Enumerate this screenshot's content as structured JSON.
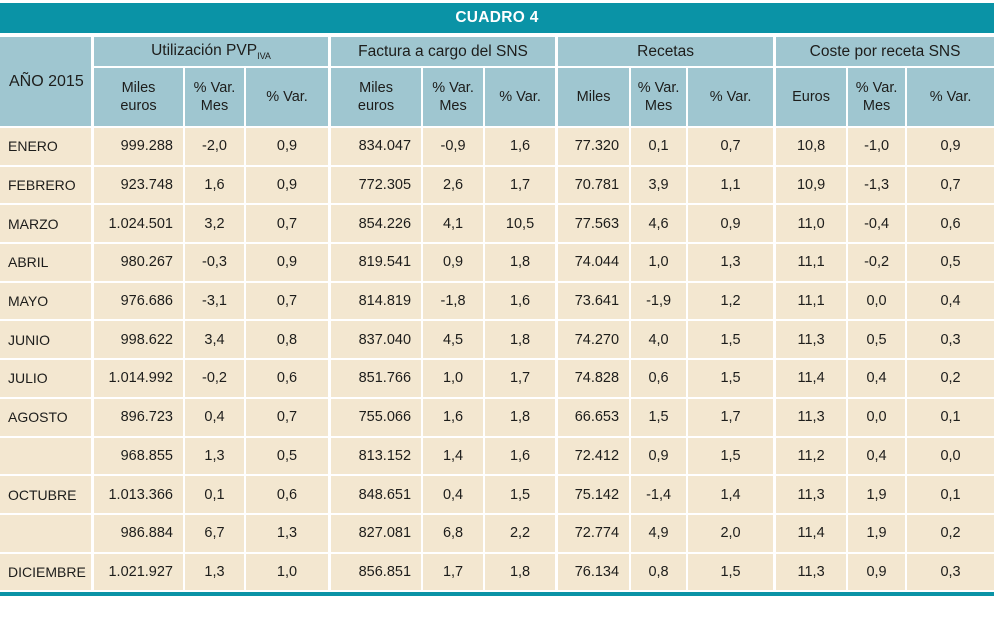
{
  "title": "CUADRO 4",
  "row_header": "AÑO 2015",
  "colors": {
    "accent_teal": "#0a93a6",
    "header_blue": "#9fc6d0",
    "row_cream": "#f3e7d0"
  },
  "groups": [
    {
      "label": "Utilización PVP",
      "label_sub": "IVA",
      "cols": [
        "Miles\neuros",
        "% Var.\nMes",
        "% Var."
      ]
    },
    {
      "label": "Factura a cargo del SNS",
      "cols": [
        "Miles\neuros",
        "% Var.\nMes",
        "% Var."
      ]
    },
    {
      "label": "Recetas",
      "cols": [
        "Miles",
        "% Var.\nMes",
        "% Var."
      ]
    },
    {
      "label": "Coste por receta SNS",
      "cols": [
        "Euros",
        "% Var.\nMes",
        "% Var."
      ]
    }
  ],
  "rows": [
    {
      "month": "ENERO",
      "values": [
        "999.288",
        "-2,0",
        "0,9",
        "834.047",
        "-0,9",
        "1,6",
        "77.320",
        "0,1",
        "0,7",
        "10,8",
        "-1,0",
        "0,9"
      ]
    },
    {
      "month": "FEBRERO",
      "values": [
        "923.748",
        "1,6",
        "0,9",
        "772.305",
        "2,6",
        "1,7",
        "70.781",
        "3,9",
        "1,1",
        "10,9",
        "-1,3",
        "0,7"
      ]
    },
    {
      "month": "MARZO",
      "values": [
        "1.024.501",
        "3,2",
        "0,7",
        "854.226",
        "4,1",
        "10,5",
        "77.563",
        "4,6",
        "0,9",
        "11,0",
        "-0,4",
        "0,6"
      ]
    },
    {
      "month": "ABRIL",
      "values": [
        "980.267",
        "-0,3",
        "0,9",
        "819.541",
        "0,9",
        "1,8",
        "74.044",
        "1,0",
        "1,3",
        "11,1",
        "-0,2",
        "0,5"
      ]
    },
    {
      "month": "MAYO",
      "values": [
        "976.686",
        "-3,1",
        "0,7",
        "814.819",
        "-1,8",
        "1,6",
        "73.641",
        "-1,9",
        "1,2",
        "11,1",
        "0,0",
        "0,4"
      ]
    },
    {
      "month": "JUNIO",
      "values": [
        "998.622",
        "3,4",
        "0,8",
        "837.040",
        "4,5",
        "1,8",
        "74.270",
        "4,0",
        "1,5",
        "11,3",
        "0,5",
        "0,3"
      ]
    },
    {
      "month": "JULIO",
      "values": [
        "1.014.992",
        "-0,2",
        "0,6",
        "851.766",
        "1,0",
        "1,7",
        "74.828",
        "0,6",
        "1,5",
        "11,4",
        "0,4",
        "0,2"
      ]
    },
    {
      "month": "AGOSTO",
      "values": [
        "896.723",
        "0,4",
        "0,7",
        "755.066",
        "1,6",
        "1,8",
        "66.653",
        "1,5",
        "1,7",
        "11,3",
        "0,0",
        "0,1"
      ]
    },
    {
      "month": "",
      "values": [
        "968.855",
        "1,3",
        "0,5",
        "813.152",
        "1,4",
        "1,6",
        "72.412",
        "0,9",
        "1,5",
        "11,2",
        "0,4",
        "0,0"
      ]
    },
    {
      "month": "OCTUBRE",
      "values": [
        "1.013.366",
        "0,1",
        "0,6",
        "848.651",
        "0,4",
        "1,5",
        "75.142",
        "-1,4",
        "1,4",
        "11,3",
        "1,9",
        "0,1"
      ]
    },
    {
      "month": "",
      "values": [
        "986.884",
        "6,7",
        "1,3",
        "827.081",
        "6,8",
        "2,2",
        "72.774",
        "4,9",
        "2,0",
        "11,4",
        "1,9",
        "0,2"
      ]
    },
    {
      "month": "DICIEMBRE",
      "values": [
        "1.021.927",
        "1,3",
        "1,0",
        "856.851",
        "1,7",
        "1,8",
        "76.134",
        "0,8",
        "1,5",
        "11,3",
        "0,9",
        "0,3"
      ]
    }
  ]
}
